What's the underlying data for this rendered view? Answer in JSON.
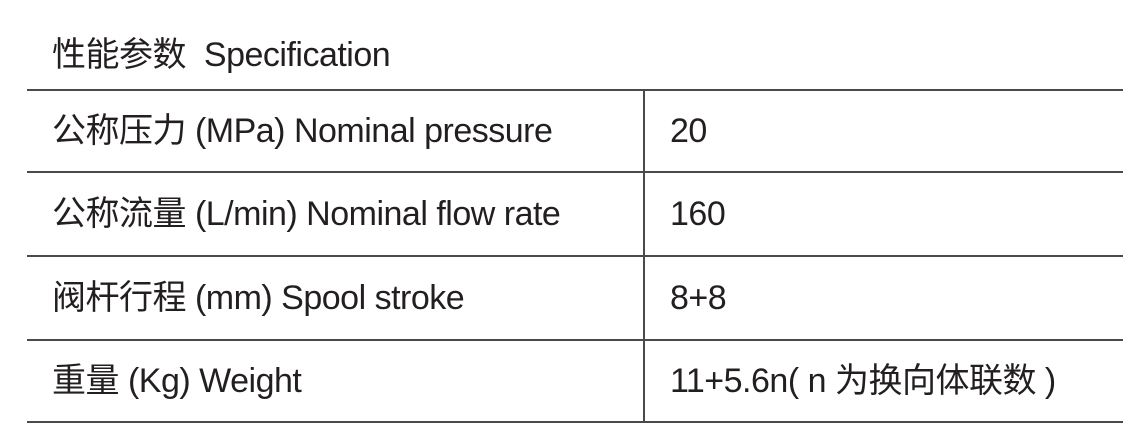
{
  "header": {
    "title": "性能参数  Specification"
  },
  "table": {
    "rows": [
      [
        "公称压力 (MPa) Nominal pressure",
        "20"
      ],
      [
        "公称流量 (L/min) Nominal flow rate",
        "160"
      ],
      [
        "阀杆行程 (mm) Spool stroke",
        "8+8"
      ],
      [
        "重量 (Kg) Weight",
        "11+5.6n( n 为换向体联数 )"
      ]
    ]
  }
}
